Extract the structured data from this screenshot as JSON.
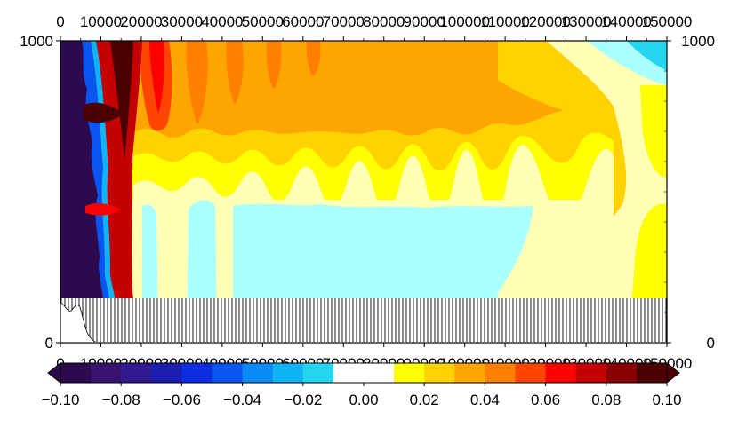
{
  "chart_data": {
    "type": "heatmap",
    "title": "",
    "xlabel": "",
    "ylabel": "",
    "xlim": [
      0,
      150000
    ],
    "ylim": [
      0,
      1000
    ],
    "x_ticks": [
      "0",
      "10000",
      "20000",
      "30000",
      "40000",
      "50000",
      "60000",
      "70000",
      "80000",
      "90000",
      "100000",
      "110000",
      "120000",
      "130000",
      "140000",
      "150000"
    ],
    "y_ticks_left": [
      "0",
      "1000"
    ],
    "y_ticks_right": [
      "0",
      "1000"
    ],
    "colorbar": {
      "orientation": "horizontal",
      "min": -0.1,
      "max": 0.1,
      "tick_labels": [
        "-0.10",
        "-0.08",
        "-0.06",
        "-0.04",
        "-0.02",
        "0.00",
        "0.02",
        "0.04",
        "0.06",
        "0.08",
        "0.10"
      ],
      "levels": [
        -0.1,
        -0.09,
        -0.08,
        -0.07,
        -0.06,
        -0.05,
        -0.04,
        -0.03,
        -0.02,
        -0.01,
        0.01,
        0.02,
        0.03,
        0.04,
        0.05,
        0.06,
        0.07,
        0.08,
        0.09,
        0.1
      ],
      "colors": [
        "#2d0a4e",
        "#3a1070",
        "#301890",
        "#1b1cb0",
        "#0c2ee0",
        "#0a55f0",
        "#0a8af5",
        "#10b4f5",
        "#26d6f0",
        "#ffffff",
        "#ffff00",
        "#ffd200",
        "#ffa500",
        "#ff7f00",
        "#ff4500",
        "#ff0000",
        "#c40000",
        "#8a0000",
        "#4a0000"
      ]
    },
    "regions": [
      {
        "name": "seabed",
        "x_range": [
          0,
          150000
        ],
        "y_range": [
          0,
          150
        ],
        "fill": "hatched"
      },
      {
        "name": "strong-negative-core",
        "x_range": [
          0,
          15000
        ],
        "y_range": [
          150,
          1000
        ],
        "value": -0.1
      },
      {
        "name": "strong-positive-column",
        "x_range": [
          15000,
          20000
        ],
        "y_range": [
          150,
          1000
        ],
        "value": 0.1
      },
      {
        "name": "positive-upper-layer",
        "x_range": [
          20000,
          150000
        ],
        "y_range": [
          450,
          1000
        ],
        "value": 0.03
      },
      {
        "name": "weak-negative-lower-layer",
        "x_range": [
          35000,
          120000
        ],
        "y_range": [
          150,
          450
        ],
        "value": -0.015
      },
      {
        "name": "near-zero-east",
        "x_range": [
          120000,
          150000
        ],
        "y_range": [
          150,
          950
        ],
        "value": 0.01
      }
    ]
  }
}
